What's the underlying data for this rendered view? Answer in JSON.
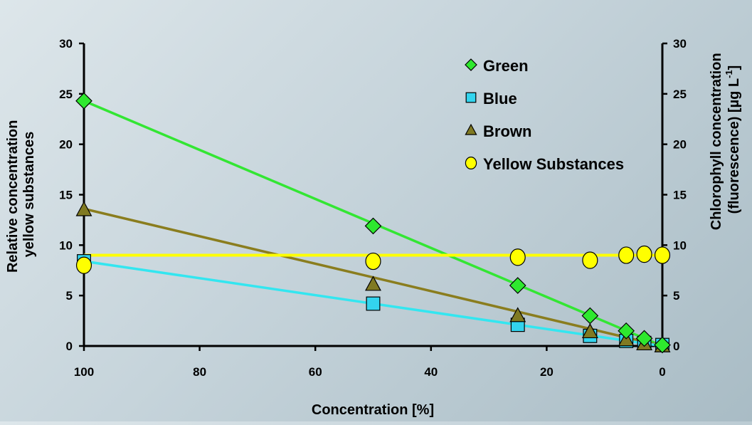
{
  "chart_data": {
    "type": "scatter",
    "xlabel": "Concentration [%]",
    "ylabel_left": [
      "Relative concentration",
      "yellow substances"
    ],
    "ylabel_right": [
      "Chlorophyll concentration",
      "(fluorescence) [µg L",
      "-1",
      "]"
    ],
    "xlim": [
      100,
      0
    ],
    "ylim": [
      0,
      30
    ],
    "x_ticks": [
      100,
      80,
      60,
      40,
      20,
      0
    ],
    "y_ticks": [
      0,
      5,
      10,
      15,
      20,
      25,
      30
    ],
    "legend_position": "top-right",
    "series": [
      {
        "name": "Green",
        "marker": "diamond",
        "color": "#2ee82e",
        "line_color": "#33e633",
        "x": [
          100,
          50,
          25,
          12.5,
          6.25,
          3.125,
          0
        ],
        "y": [
          24.3,
          11.9,
          6.0,
          3.0,
          1.5,
          0.75,
          0.1
        ],
        "trend": [
          [
            100,
            24.3
          ],
          [
            0,
            0
          ]
        ]
      },
      {
        "name": "Blue",
        "marker": "square",
        "color": "#33d4ee",
        "line_color": "#33e6f0",
        "x": [
          100,
          50,
          25,
          12.5,
          6.25,
          3.125,
          0
        ],
        "y": [
          8.4,
          4.2,
          2.1,
          1.0,
          0.5,
          0.3,
          0.1
        ],
        "trend": [
          [
            100,
            8.4
          ],
          [
            0,
            0
          ]
        ]
      },
      {
        "name": "Brown",
        "marker": "triangle",
        "color": "#807a22",
        "line_color": "#8a7d1e",
        "x": [
          100,
          50,
          25,
          12.5,
          6.25,
          3.125,
          0
        ],
        "y": [
          13.5,
          6.1,
          3.0,
          1.4,
          0.6,
          0.2,
          0.0
        ],
        "trend": [
          [
            100,
            13.6
          ],
          [
            0,
            0
          ]
        ]
      },
      {
        "name": "Yellow Substances",
        "marker": "circle",
        "color": "#ffff00",
        "line_color": "#ffff00",
        "x": [
          100,
          50,
          25,
          12.5,
          6.25,
          3.125,
          0
        ],
        "y": [
          8.0,
          8.4,
          8.8,
          8.5,
          9.0,
          9.1,
          9.0
        ],
        "trend": [
          [
            100,
            9.0
          ],
          [
            0,
            9.0
          ]
        ]
      }
    ]
  }
}
